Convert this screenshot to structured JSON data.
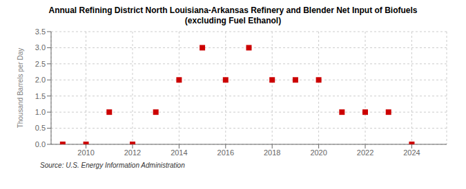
{
  "chart_data": {
    "type": "scatter",
    "title": "Annual Refining District North Louisiana-Arkansas Refinery and Blender Net Input of Biofuels",
    "subtitle": "(excluding Fuel Ethanol)",
    "y_label": "Thousand Barrels per Day",
    "source": "Source: U.S. Energy Information Administration",
    "x": [
      2009,
      2010,
      2011,
      2012,
      2013,
      2014,
      2015,
      2016,
      2017,
      2018,
      2019,
      2020,
      2021,
      2022,
      2023,
      2024
    ],
    "values": [
      0.0,
      0.0,
      1.0,
      0.0,
      1.0,
      2.0,
      3.0,
      2.0,
      3.0,
      2.0,
      2.0,
      2.0,
      1.0,
      1.0,
      1.0,
      0.0
    ],
    "color": "#cc0000",
    "marker": "square",
    "xlim": [
      2008.5,
      2025.5
    ],
    "ylim": [
      0.0,
      3.5
    ],
    "xticks": [
      2010,
      2012,
      2014,
      2016,
      2018,
      2020,
      2022,
      2024
    ],
    "yticks": [
      {
        "value": 0.0,
        "label": "0.0"
      },
      0.5,
      {
        "value": 1.0,
        "label": "1.0"
      },
      1.5,
      {
        "value": 2.0,
        "label": "2.0"
      },
      2.5,
      {
        "value": 3.0,
        "label": "3.0"
      },
      3.5
    ],
    "grid": true
  }
}
